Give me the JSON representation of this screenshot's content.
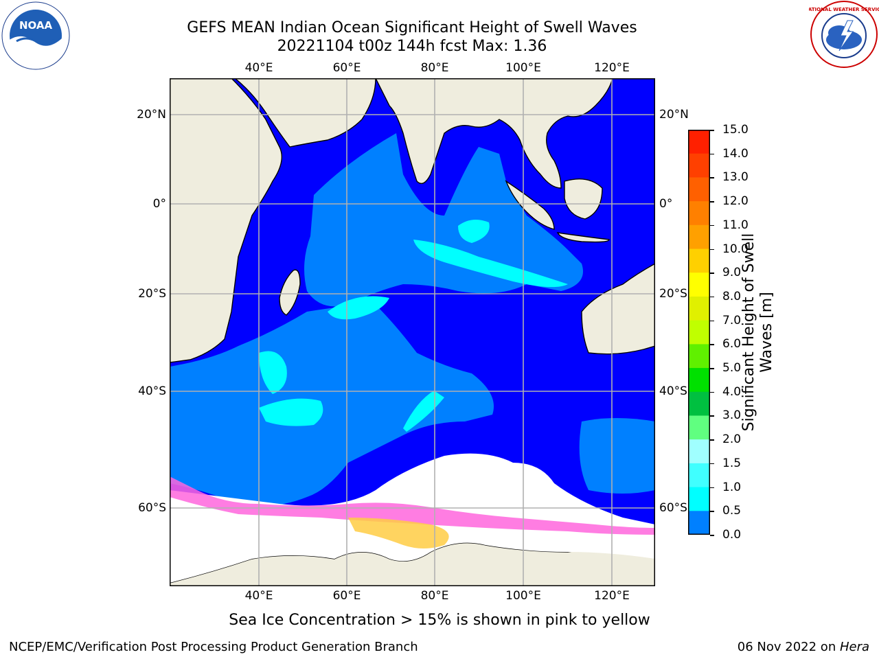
{
  "title_line1": "GEFS MEAN Indian Ocean Significant Height of Swell Waves",
  "title_line2": "20221104 t00z 144h fcst   Max: 1.36",
  "map": {
    "lon_labels": [
      "40°E",
      "60°E",
      "80°E",
      "100°E",
      "120°E"
    ],
    "lat_labels": [
      "20°N",
      "0°",
      "20°S",
      "40°S",
      "60°S"
    ],
    "land_color": "#efedde",
    "ocean_low_color": "#0000ff",
    "ocean_mid_color": "#0080ff",
    "ocean_high_color": "#00ffff",
    "ice_color": "#ffffff"
  },
  "colorbar": {
    "label": "Significant Height of Swell Waves [m]",
    "label_line1": "Significant Height of Swell",
    "label_line2": "Waves [m]",
    "ticks": [
      "15.0",
      "14.0",
      "13.0",
      "12.0",
      "11.0",
      "10.0",
      "9.0",
      "8.0",
      "7.0",
      "6.0",
      "5.0",
      "4.0",
      "3.0",
      "2.0",
      "1.5",
      "1.0",
      "0.5",
      "0.0"
    ],
    "colors": [
      "#ff0000",
      "#ff2000",
      "#ff4000",
      "#ff6000",
      "#ff8000",
      "#ffa000",
      "#ffd000",
      "#ffff00",
      "#e0f000",
      "#c0ff00",
      "#60f000",
      "#00e000",
      "#00c040",
      "#60ff80",
      "#a0ffff",
      "#40ffff",
      "#00ffff",
      "#0080ff",
      "#0000ff"
    ]
  },
  "caption": "Sea Ice Concentration > 15% is shown in pink to yellow",
  "footer_left": "NCEP/EMC/Verification Post Processing Product Generation Branch",
  "footer_right_prefix": "06 Nov 2022 on ",
  "footer_right_host": "Hera",
  "logos": {
    "left": "NOAA",
    "right": "NATIONAL WEATHER SERVICE"
  }
}
